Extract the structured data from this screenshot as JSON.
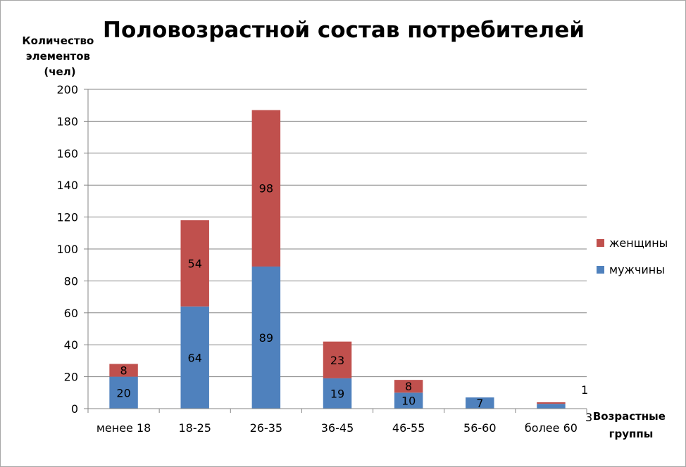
{
  "chart_data": {
    "type": "bar",
    "stacked": true,
    "title": "Половозрастной состав потребителей",
    "ylabel": [
      "Количество",
      "элементов",
      "(чел)"
    ],
    "xlabel": [
      "Возрастные",
      "группы"
    ],
    "ylim": [
      0,
      200
    ],
    "yticks": [
      0,
      20,
      40,
      60,
      80,
      100,
      120,
      140,
      160,
      180,
      200
    ],
    "grid": true,
    "legend_position": "right",
    "categories": [
      "менее 18",
      "18-25",
      "26-35",
      "36-45",
      "46-55",
      "56-60",
      "более 60"
    ],
    "series": [
      {
        "name": "мужчины",
        "color": "#4f81bd",
        "values": [
          20,
          64,
          89,
          19,
          10,
          7,
          3
        ]
      },
      {
        "name": "женщины",
        "color": "#c0504d",
        "values": [
          8,
          54,
          98,
          23,
          8,
          0,
          1
        ]
      }
    ],
    "data_labels": {
      "мужчины": [
        "20",
        "64",
        "89",
        "19",
        "10",
        "7",
        "3"
      ],
      "женщины": [
        "8",
        "54",
        "98",
        "23",
        "8",
        "",
        "1"
      ]
    }
  }
}
